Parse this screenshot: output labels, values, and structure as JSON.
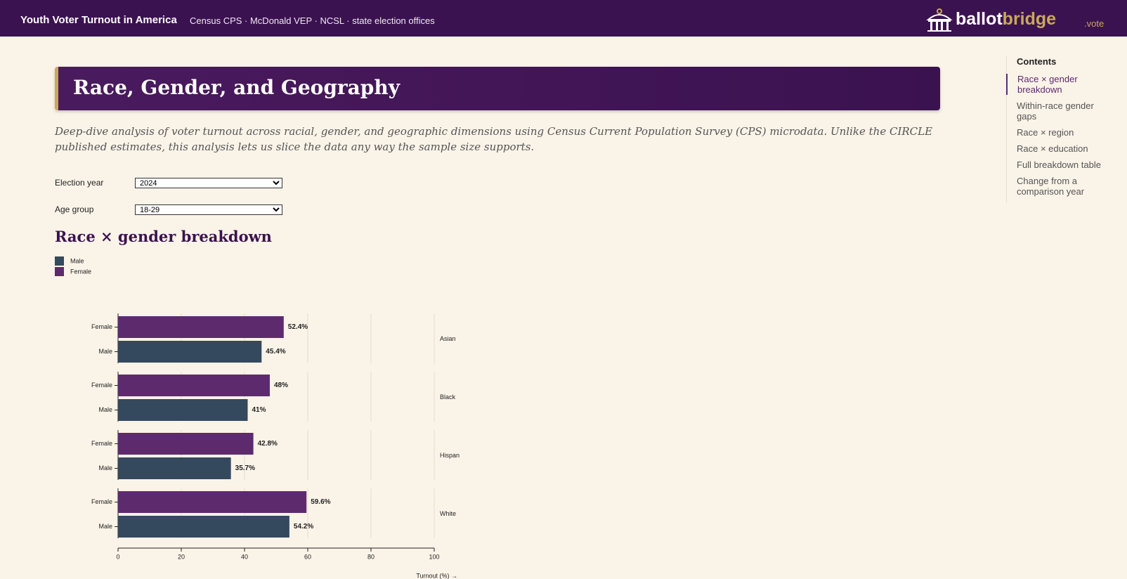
{
  "header": {
    "title": "Youth Voter Turnout in America",
    "sources": "Census CPS · McDonald VEP · NCSL · state election offices",
    "logo_a": "ballot",
    "logo_b": "bridge",
    "domain": ".vote"
  },
  "banner": {
    "title": "Race, Gender, and Geography"
  },
  "description": "Deep-dive analysis of voter turnout across racial, gender, and geographic dimensions using Census Current Population Survey (CPS) microdata. Unlike the CIRCLE published estimates, this analysis lets us slice the data any way the sample size supports.",
  "controls": [
    {
      "label": "Election year",
      "value": "2024"
    },
    {
      "label": "Age group",
      "value": "18-29"
    }
  ],
  "section_title": "Race × gender breakdown",
  "toc": {
    "title": "Contents",
    "items": [
      "Race × gender breakdown",
      "Within-race gender gaps",
      "Race × region",
      "Race × education",
      "Full breakdown table",
      "Change from a comparison year"
    ]
  },
  "chart_data": {
    "type": "bar",
    "orientation": "horizontal",
    "categories": [
      "Asian",
      "Black",
      "Hispanic",
      "White"
    ],
    "series": [
      {
        "name": "Male",
        "color": "#34495e",
        "values": [
          45.4,
          41,
          35.7,
          54.2
        ],
        "value_labels": [
          "45.4%",
          "41%",
          "35.7%",
          "54.2%"
        ]
      },
      {
        "name": "Female",
        "color": "#5e2a6e",
        "values": [
          52.4,
          48,
          42.8,
          59.6
        ],
        "value_labels": [
          "52.4%",
          "48%",
          "42.8%",
          "59.6%"
        ]
      }
    ],
    "xlim": [
      0,
      100
    ],
    "xticks": [
      0,
      20,
      40,
      60,
      80,
      100
    ],
    "x_label": "Turnout (%) →",
    "grid": true
  }
}
